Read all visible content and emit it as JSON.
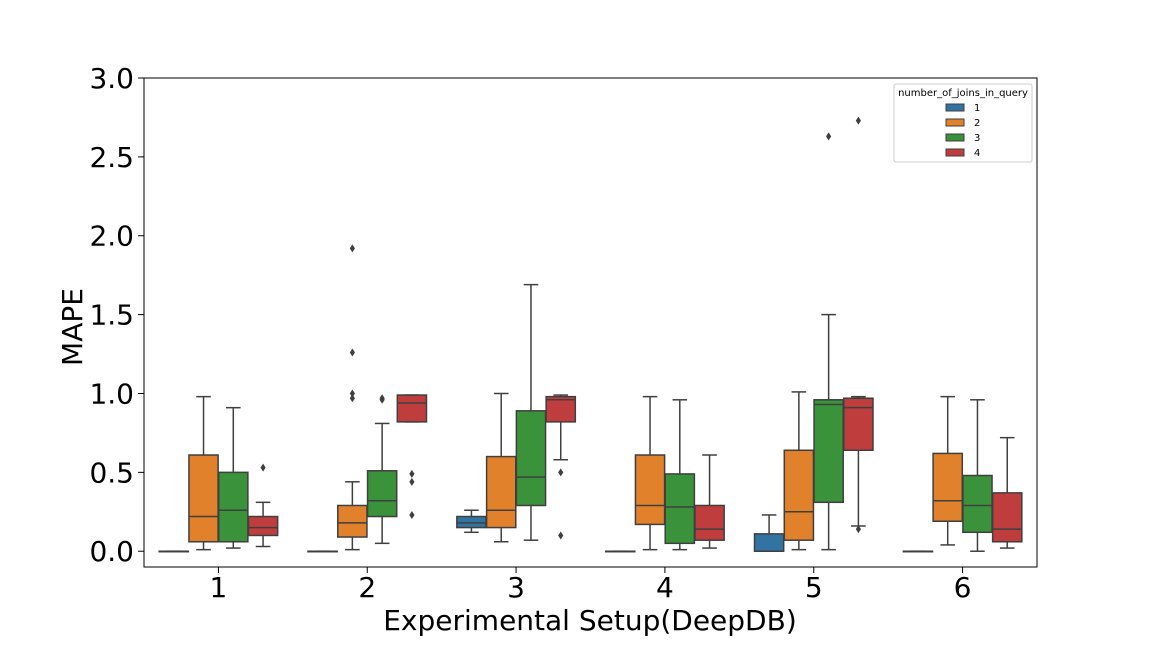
{
  "chart_data": {
    "type": "box",
    "xlabel": "Experimental Setup(DeepDB)",
    "ylabel": "MAPE",
    "ylim": [
      -0.1,
      3.0
    ],
    "yticks": [
      "0.0",
      "0.5",
      "1.0",
      "1.5",
      "2.0",
      "2.5",
      "3.0"
    ],
    "yticks_values": [
      0,
      0.5,
      1.0,
      1.5,
      2.0,
      2.5,
      3.0
    ],
    "categories": [
      "1",
      "2",
      "3",
      "4",
      "5",
      "6"
    ],
    "legend": {
      "title": "number_of_joins_in_query",
      "position": "top-right",
      "entries": [
        "1",
        "2",
        "3",
        "4"
      ]
    },
    "colors": [
      "#3274a1",
      "#e1812c",
      "#3a923a",
      "#c03d3e"
    ],
    "series": [
      {
        "name": "1",
        "boxes": [
          {
            "min": 0.0,
            "q1": 0.0,
            "median": 0.0,
            "q3": 0.0,
            "max": 0.0,
            "outliers": []
          },
          {
            "min": 0.0,
            "q1": 0.0,
            "median": 0.0,
            "q3": 0.0,
            "max": 0.0,
            "outliers": []
          },
          {
            "min": 0.12,
            "q1": 0.15,
            "median": 0.18,
            "q3": 0.22,
            "max": 0.26,
            "outliers": []
          },
          {
            "min": 0.0,
            "q1": 0.0,
            "median": 0.0,
            "q3": 0.0,
            "max": 0.0,
            "outliers": []
          },
          {
            "min": 0.0,
            "q1": 0.0,
            "median": 0.0,
            "q3": 0.11,
            "max": 0.23,
            "outliers": []
          },
          {
            "min": 0.0,
            "q1": 0.0,
            "median": 0.0,
            "q3": 0.0,
            "max": 0.0,
            "outliers": []
          }
        ]
      },
      {
        "name": "2",
        "boxes": [
          {
            "min": 0.01,
            "q1": 0.06,
            "median": 0.22,
            "q3": 0.61,
            "max": 0.98,
            "outliers": []
          },
          {
            "min": 0.01,
            "q1": 0.09,
            "median": 0.18,
            "q3": 0.29,
            "max": 0.44,
            "outliers": [
              0.97,
              1.0,
              1.26,
              1.92
            ]
          },
          {
            "min": 0.06,
            "q1": 0.15,
            "median": 0.26,
            "q3": 0.6,
            "max": 1.0,
            "outliers": []
          },
          {
            "min": 0.01,
            "q1": 0.17,
            "median": 0.29,
            "q3": 0.61,
            "max": 0.98,
            "outliers": []
          },
          {
            "min": 0.01,
            "q1": 0.07,
            "median": 0.25,
            "q3": 0.64,
            "max": 1.01,
            "outliers": []
          },
          {
            "min": 0.04,
            "q1": 0.19,
            "median": 0.32,
            "q3": 0.62,
            "max": 0.98,
            "outliers": []
          }
        ]
      },
      {
        "name": "3",
        "boxes": [
          {
            "min": 0.02,
            "q1": 0.06,
            "median": 0.26,
            "q3": 0.5,
            "max": 0.91,
            "outliers": []
          },
          {
            "min": 0.05,
            "q1": 0.22,
            "median": 0.32,
            "q3": 0.51,
            "max": 0.81,
            "outliers": [
              0.96,
              0.97
            ]
          },
          {
            "min": 0.07,
            "q1": 0.29,
            "median": 0.47,
            "q3": 0.89,
            "max": 1.69,
            "outliers": []
          },
          {
            "min": 0.01,
            "q1": 0.05,
            "median": 0.28,
            "q3": 0.49,
            "max": 0.96,
            "outliers": []
          },
          {
            "min": 0.01,
            "q1": 0.31,
            "median": 0.93,
            "q3": 0.96,
            "max": 1.5,
            "outliers": [
              2.63
            ]
          },
          {
            "min": 0.0,
            "q1": 0.12,
            "median": 0.29,
            "q3": 0.48,
            "max": 0.96,
            "outliers": []
          }
        ]
      },
      {
        "name": "4",
        "boxes": [
          {
            "min": 0.03,
            "q1": 0.1,
            "median": 0.15,
            "q3": 0.22,
            "max": 0.31,
            "outliers": [
              0.53
            ]
          },
          {
            "min": 0.82,
            "q1": 0.82,
            "median": 0.94,
            "q3": 0.99,
            "max": 0.99,
            "outliers": [
              0.23,
              0.44,
              0.49
            ]
          },
          {
            "min": 0.58,
            "q1": 0.82,
            "median": 0.96,
            "q3": 0.98,
            "max": 0.99,
            "outliers": [
              0.1,
              0.5
            ]
          },
          {
            "min": 0.02,
            "q1": 0.07,
            "median": 0.14,
            "q3": 0.29,
            "max": 0.61,
            "outliers": []
          },
          {
            "min": 0.16,
            "q1": 0.64,
            "median": 0.91,
            "q3": 0.97,
            "max": 0.98,
            "outliers": [
              0.14,
              2.73
            ]
          },
          {
            "min": 0.02,
            "q1": 0.06,
            "median": 0.14,
            "q3": 0.37,
            "max": 0.72,
            "outliers": []
          }
        ]
      }
    ]
  }
}
